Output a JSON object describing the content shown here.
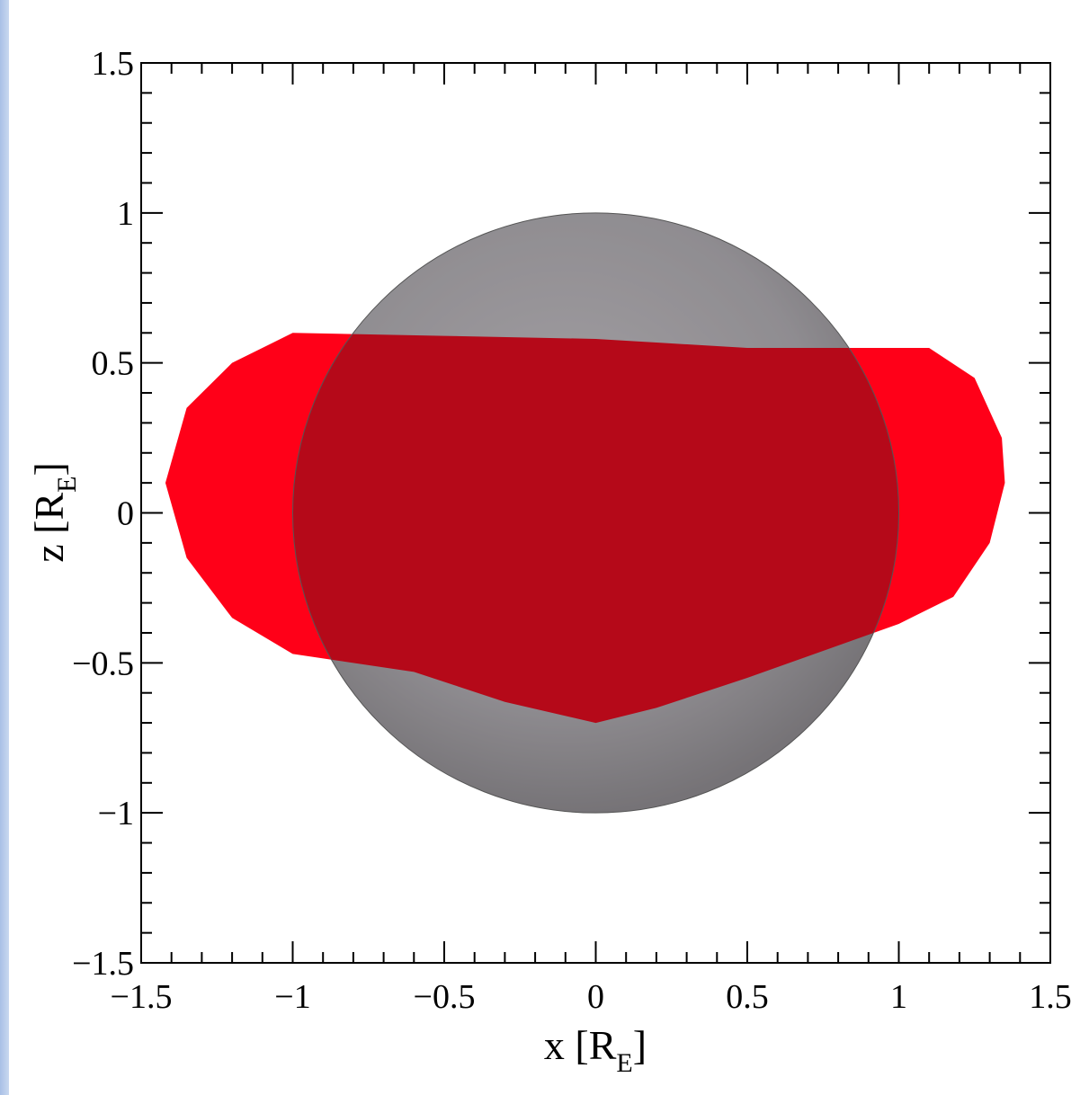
{
  "chart_data": {
    "type": "region",
    "xlabel": {
      "main": "x [R",
      "sub": "E",
      "end": "]"
    },
    "ylabel": {
      "main": "z [R",
      "sub": "E",
      "end": "]"
    },
    "xlim": [
      -1.5,
      1.5
    ],
    "ylim": [
      -1.5,
      1.5
    ],
    "xticks": [
      {
        "value": -1.5,
        "label": "−1.5"
      },
      {
        "value": -1,
        "label": "−1"
      },
      {
        "value": -0.5,
        "label": "−0.5"
      },
      0,
      0.5,
      1,
      1.5
    ],
    "yticks": [
      {
        "value": -1.5,
        "label": "−1.5"
      },
      {
        "value": -1,
        "label": "−1"
      },
      {
        "value": -0.5,
        "label": "−0.5"
      },
      0,
      0.5,
      1,
      1.5
    ],
    "minor_per_major": 5,
    "earth_radius": 1,
    "color": "#ff0018",
    "x": [
      -1.0,
      -0.5,
      0,
      0.5,
      1.1,
      1.25,
      1.34,
      1.35,
      1.3,
      1.18,
      1.0,
      0.5,
      0.2,
      0,
      -0.3,
      -0.6,
      -1.0,
      -1.2,
      -1.35,
      -1.42,
      -1.35,
      -1.2
    ],
    "y": [
      0.6,
      0.59,
      0.58,
      0.55,
      0.55,
      0.45,
      0.25,
      0.1,
      -0.1,
      -0.28,
      -0.37,
      -0.55,
      -0.65,
      -0.7,
      -0.63,
      -0.53,
      -0.47,
      -0.35,
      -0.15,
      0.1,
      0.35,
      0.5
    ]
  }
}
